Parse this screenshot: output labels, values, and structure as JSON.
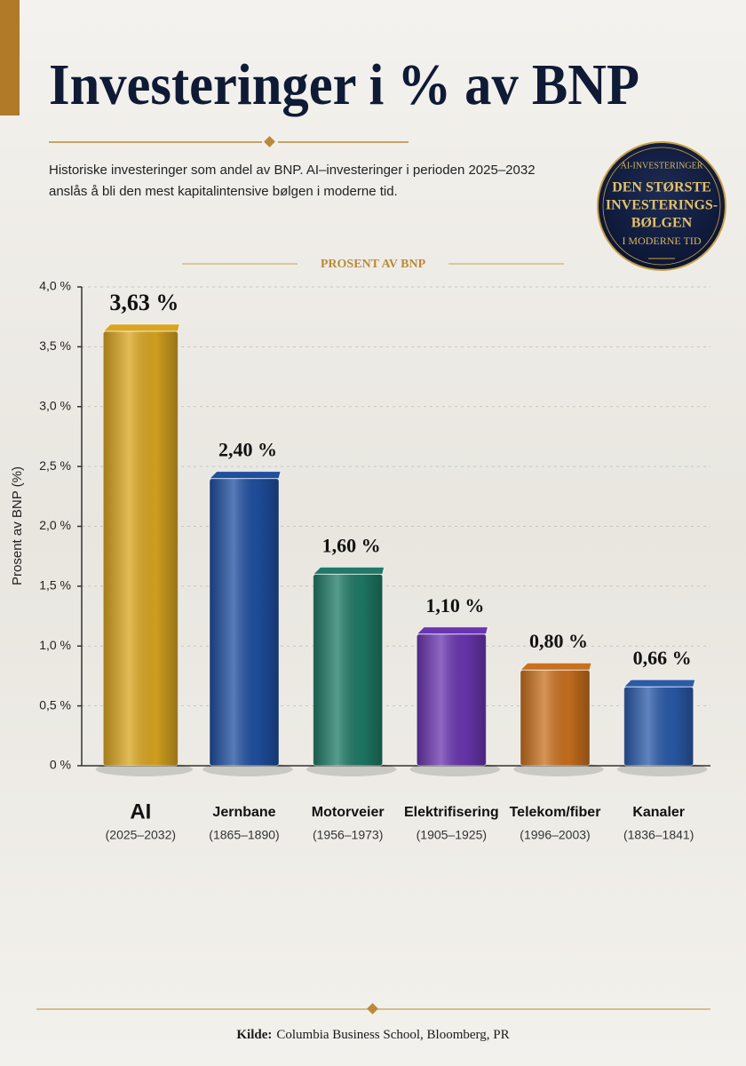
{
  "chart_data": {
    "type": "bar",
    "title": "Investeringer i % av BNP",
    "subtitle": [
      "Historiske investeringer som andel av BNP. AI–investeringer i perioden 2025–2032",
      "anslås å bli den mest kapitalintensive bølgen i moderne tid."
    ],
    "chart_heading": "PROSENT AV BNP",
    "y_label": "Prosent av BNP (%)",
    "categories": [
      "AI",
      "Jernbane",
      "Motorveier",
      "Elektrifisering",
      "Telekom/fiber",
      "Kanaler"
    ],
    "periods": [
      "(2025–2032)",
      "(1865–1890)",
      "(1956–1973)",
      "(1905–1925)",
      "(1996–2003)",
      "(1836–1841)"
    ],
    "values": [
      3.63,
      2.4,
      1.6,
      1.1,
      0.8,
      0.66
    ],
    "value_labels": [
      "3,63 %",
      "2,40 %",
      "1,60 %",
      "1,10 %",
      "0,80 %",
      "0,66 %"
    ],
    "colors": [
      "#d9a520",
      "#1f4fa0",
      "#1f7a66",
      "#6a35b0",
      "#c9701e",
      "#2a5aa8"
    ],
    "ylim": [
      0,
      4
    ],
    "yticks": [
      {
        "value": 0,
        "label": "0 %"
      },
      {
        "value": 0.5,
        "label": "0,5 %"
      },
      {
        "value": 1,
        "label": "1,0 %"
      },
      {
        "value": 1.5,
        "label": "1,5 %"
      },
      {
        "value": 2,
        "label": "2,0 %"
      },
      {
        "value": 2.5,
        "label": "2,5 %"
      },
      {
        "value": 3,
        "label": "3,0 %"
      },
      {
        "value": 3.5,
        "label": "3,5 %"
      },
      {
        "value": 4,
        "label": "4,0 %"
      }
    ],
    "grid": true,
    "badge": [
      "AI-INVESTERINGER",
      "DEN STØRSTE",
      "INVESTERINGS-",
      "BØLGEN",
      "I MODERNE TID"
    ],
    "source": {
      "label": "Kilde:",
      "text": "Columbia Business School, Bloomberg, PR"
    }
  }
}
